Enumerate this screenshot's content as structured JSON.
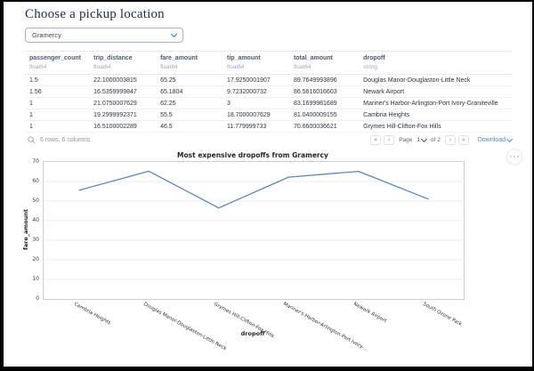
{
  "header": {
    "title": "Choose a pickup location"
  },
  "pickup_select": {
    "value": "Gramercy"
  },
  "table": {
    "columns": [
      {
        "name": "passenger_count",
        "type": "float64"
      },
      {
        "name": "trip_distance",
        "type": "float64"
      },
      {
        "name": "fare_amount",
        "type": "float64"
      },
      {
        "name": "tip_amount",
        "type": "float64"
      },
      {
        "name": "total_amount",
        "type": "float64"
      },
      {
        "name": "dropoff",
        "type": "string"
      }
    ],
    "rows": [
      [
        "1.5",
        "22.1000003815",
        "65.25",
        "17.9250001907",
        "89.7649993896",
        "Douglas Manor-Douglaston-Little Neck"
      ],
      [
        "1.56",
        "16.5359999847",
        "65.1804",
        "9.7232000732",
        "86.5616016603",
        "Newark Airport"
      ],
      [
        "1",
        "21.0750007629",
        "62.25",
        "3",
        "83.1699981689",
        "Mariner's Harbor-Arlington-Port Ivory-Graniteville"
      ],
      [
        "1",
        "19.2999992371",
        "55.5",
        "18.7000007629",
        "81.0400009155",
        "Cambria Heights"
      ],
      [
        "1",
        "16.5100002289",
        "46.5",
        "11.779999733",
        "70.6600036621",
        "Grymes Hill-Clifton-Fox Hills"
      ]
    ],
    "footer": {
      "summary": "6 rows, 6 columns",
      "first_glyph": "«",
      "prev_glyph": "‹",
      "next_glyph": "›",
      "last_glyph": "»",
      "page_label": "Page",
      "page_value": "1",
      "page_total": "of 2",
      "download_label": "Download"
    }
  },
  "chart_data": {
    "type": "line",
    "title": "Most expensive dropoffs from Gramercy",
    "xlabel": "dropoff",
    "ylabel": "fare_amount",
    "categories": [
      "Cambria Heights",
      "Douglas Manor-Douglaston-Little Neck",
      "Grymes Hill-Clifton-Fox Hills",
      "Mariner's Harbor-Arlington-Port Ivory-...",
      "Newark Airport",
      "South Ozone Park"
    ],
    "values": [
      55.5,
      65.25,
      46.5,
      62.25,
      65.1804,
      51.0
    ],
    "ylim": [
      0,
      70
    ],
    "ytick_step": 10,
    "grid": true,
    "legend": "none",
    "line_color": "#5b87b5",
    "grid_color": "#ececec",
    "spine_color": "#cfcfcf"
  },
  "theme": {
    "title_color": "#22304f",
    "accent_blue": "#4c86c8"
  }
}
